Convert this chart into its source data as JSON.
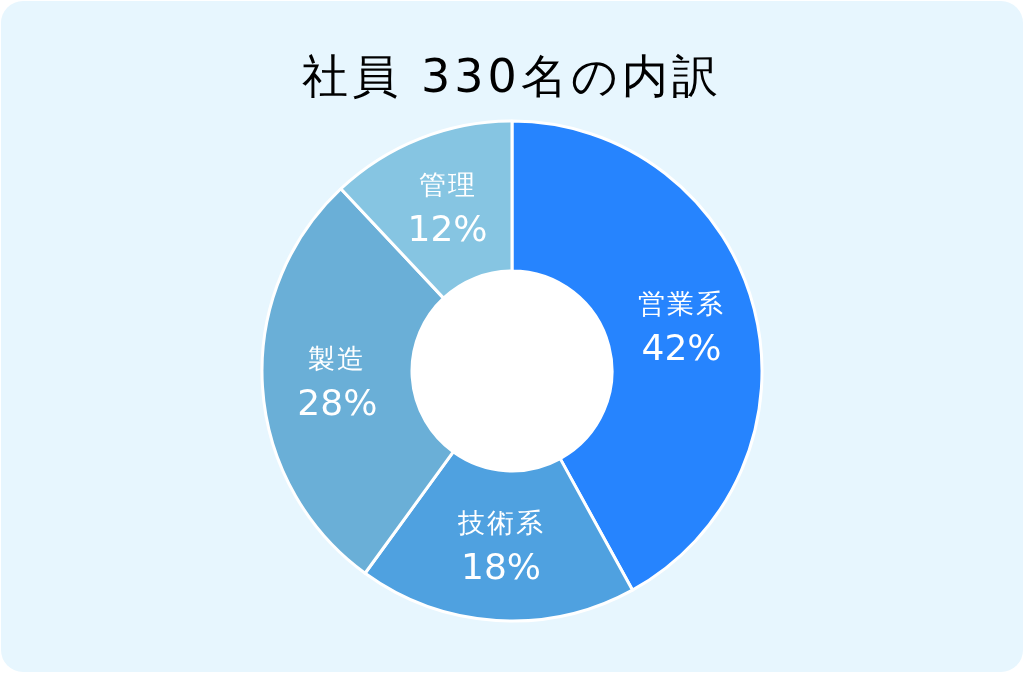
{
  "chart_data": {
    "type": "donut",
    "title": "社員 330名の内訳",
    "categories": [
      "営業系",
      "技術系",
      "製造",
      "管理"
    ],
    "values": [
      42,
      18,
      28,
      12
    ],
    "colors": [
      "#2684fe",
      "#4fa1e0",
      "#6aafd7",
      "#86c5e2"
    ],
    "value_labels": [
      "42%",
      "18%",
      "28%",
      "12%"
    ]
  }
}
